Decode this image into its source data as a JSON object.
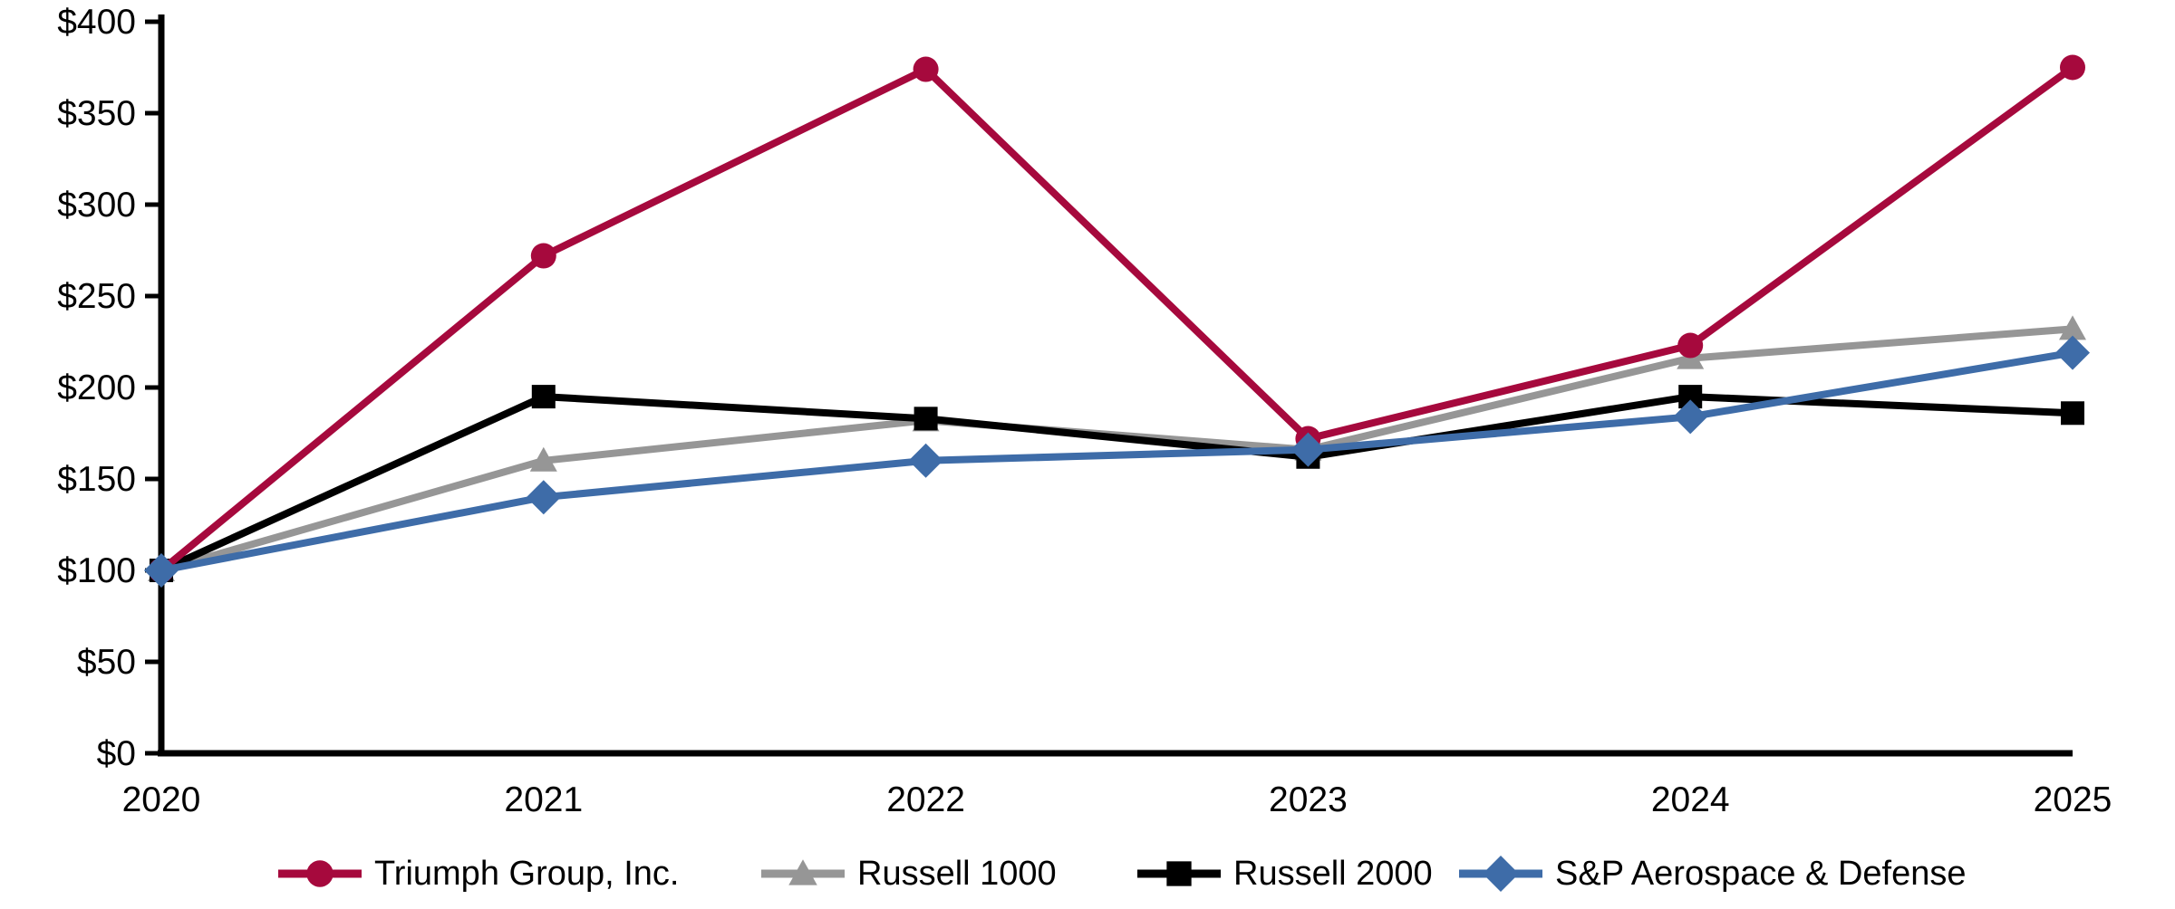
{
  "chart_data": {
    "type": "line",
    "title": "",
    "xlabel": "",
    "ylabel": "",
    "x": [
      "2020",
      "2021",
      "2022",
      "2023",
      "2024",
      "2025"
    ],
    "y_ticks": [
      0,
      50,
      100,
      150,
      200,
      250,
      300,
      350,
      400
    ],
    "y_tick_prefix": "$",
    "ylim": [
      0,
      400
    ],
    "grid": false,
    "legend_position": "bottom",
    "axis_color": "#000000",
    "series": [
      {
        "name": "Triumph Group, Inc.",
        "marker": "circle",
        "color": "#A6093D",
        "z": 3,
        "values": [
          100,
          272,
          374,
          172,
          223,
          375
        ]
      },
      {
        "name": "Russell 1000",
        "marker": "triangle",
        "color": "#969696",
        "z": 1,
        "values": [
          100,
          160,
          182,
          166,
          216,
          232
        ]
      },
      {
        "name": "Russell 2000",
        "marker": "square",
        "color": "#000000",
        "z": 2,
        "values": [
          100,
          195,
          183,
          162,
          195,
          186
        ]
      },
      {
        "name": "S&P Aerospace & Defense",
        "marker": "diamond",
        "color": "#3E6CA8",
        "z": 4,
        "values": [
          100,
          140,
          160,
          166,
          184,
          219
        ]
      }
    ]
  },
  "legend": {
    "item_left_offsets": [
      305,
      838,
      1253,
      1608
    ]
  }
}
